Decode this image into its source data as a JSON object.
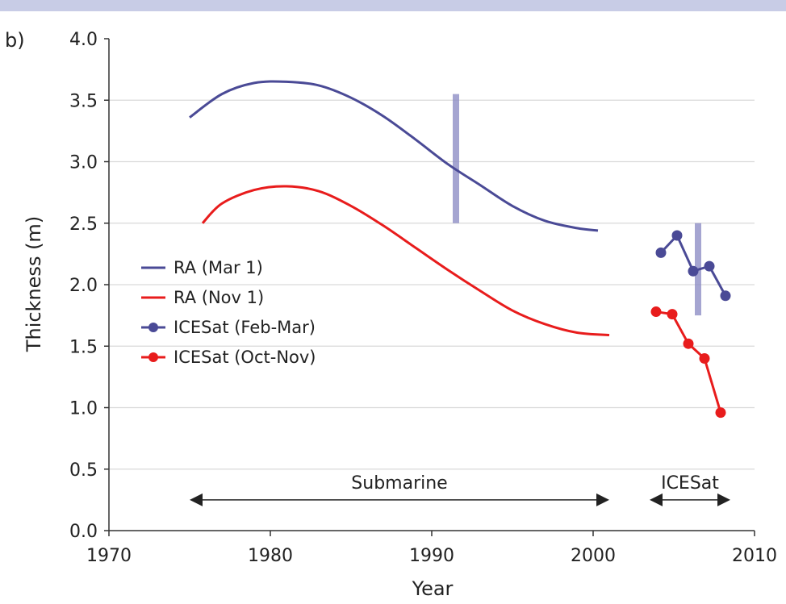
{
  "chart_data": {
    "type": "line",
    "panel_label": "b)",
    "xlabel": "Year",
    "ylabel": "Thickness (m)",
    "xlim": [
      1970,
      2010
    ],
    "ylim": [
      0.0,
      4.0
    ],
    "x_ticks": [
      1970,
      1980,
      1990,
      2000,
      2010
    ],
    "y_ticks": [
      "0.0",
      "0.5",
      "1.0",
      "1.5",
      "2.0",
      "2.5",
      "3.0",
      "3.5",
      "4.0"
    ],
    "grid": "horizontal",
    "legend_position": "left",
    "series": [
      {
        "name": "RA (Mar 1)",
        "color": "#4a4a96",
        "style": "line",
        "x": [
          1975,
          1977,
          1979,
          1981,
          1983,
          1985,
          1987,
          1989,
          1991,
          1993,
          1995,
          1997,
          1999,
          2000.3
        ],
        "y": [
          3.36,
          3.55,
          3.64,
          3.65,
          3.62,
          3.52,
          3.37,
          3.18,
          2.98,
          2.81,
          2.64,
          2.52,
          2.46,
          2.44
        ]
      },
      {
        "name": "RA (Nov 1)",
        "color": "#e81c1c",
        "style": "line",
        "x": [
          1975.8,
          1977,
          1979,
          1981,
          1983,
          1985,
          1987,
          1989,
          1991,
          1993,
          1995,
          1997,
          1999,
          2001
        ],
        "y": [
          2.5,
          2.66,
          2.77,
          2.8,
          2.76,
          2.64,
          2.48,
          2.3,
          2.12,
          1.95,
          1.79,
          1.68,
          1.61,
          1.59
        ]
      },
      {
        "name": "ICESat (Feb-Mar)",
        "color": "#4a4a96",
        "style": "line-markers",
        "x": [
          2004.2,
          2005.2,
          2006.2,
          2007.2,
          2008.2
        ],
        "y": [
          2.26,
          2.4,
          2.11,
          2.15,
          1.91
        ]
      },
      {
        "name": "ICESat (Oct-Nov)",
        "color": "#e81c1c",
        "style": "line-markers",
        "x": [
          2003.9,
          2004.9,
          2005.9,
          2006.9,
          2007.9
        ],
        "y": [
          1.78,
          1.76,
          1.52,
          1.4,
          0.96
        ]
      }
    ],
    "error_bars": [
      {
        "x": 1991.5,
        "y_low": 2.5,
        "y_high": 3.55,
        "color": "#8e8ec6"
      },
      {
        "x": 2006.5,
        "y_low": 1.75,
        "y_high": 2.5,
        "color": "#8e8ec6"
      }
    ],
    "annotations": [
      {
        "label": "Submarine",
        "x_start": 1975,
        "x_end": 2001,
        "y": 0.25
      },
      {
        "label": "ICESat",
        "x_start": 2003.5,
        "x_end": 2008.5,
        "y": 0.25
      }
    ]
  }
}
